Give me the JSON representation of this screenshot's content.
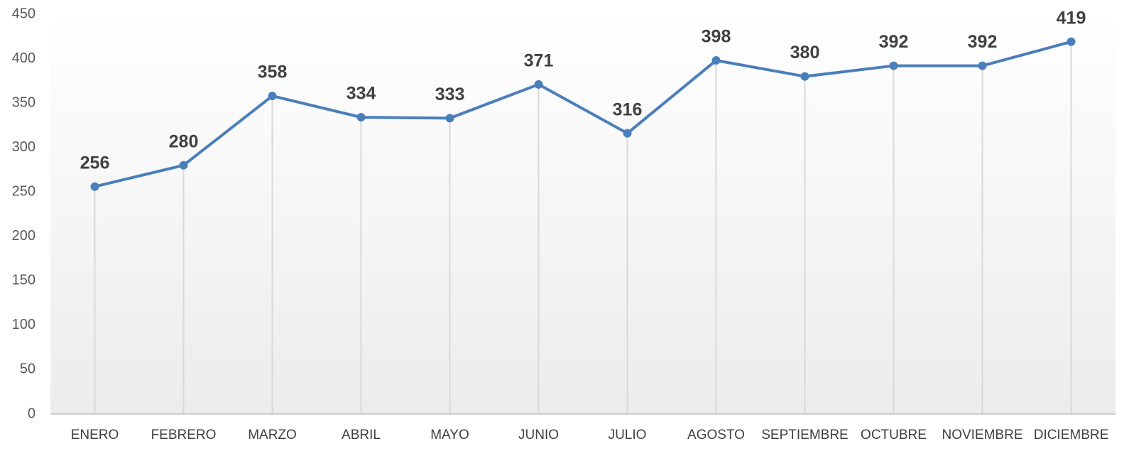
{
  "chart_data": {
    "type": "line",
    "categories": [
      "ENERO",
      "FEBRERO",
      "MARZO",
      "ABRIL",
      "MAYO",
      "JUNIO",
      "JULIO",
      "AGOSTO",
      "SEPTIEMBRE",
      "OCTUBRE",
      "NOVIEMBRE",
      "DICIEMBRE"
    ],
    "values": [
      256,
      280,
      358,
      334,
      333,
      371,
      316,
      398,
      380,
      392,
      392,
      419
    ],
    "color": "#4a7ebb",
    "ylim": [
      0,
      450
    ],
    "yticks": [
      0,
      50,
      100,
      150,
      200,
      250,
      300,
      350,
      400,
      450
    ],
    "grid": false,
    "drop_lines": true,
    "data_labels": true
  }
}
